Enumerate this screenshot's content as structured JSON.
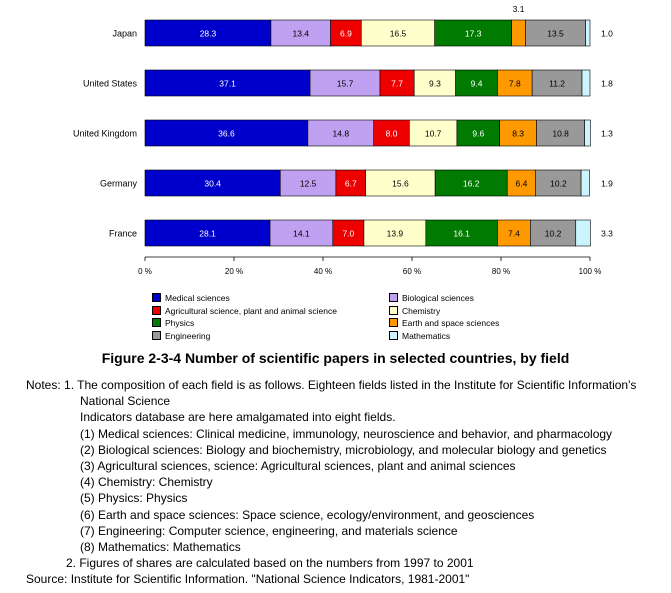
{
  "chart_data": {
    "type": "bar",
    "orientation": "horizontal",
    "stacked": true,
    "percent": true,
    "categories": [
      "Japan",
      "United States",
      "United Kingdom",
      "Germany",
      "France"
    ],
    "series": [
      {
        "name": "Medical sciences",
        "color": "#0000cc",
        "values": [
          28.3,
          37.1,
          36.6,
          30.4,
          28.1
        ],
        "labels": [
          "28.3",
          "37.1",
          "36.6",
          "30.4",
          "28.1"
        ]
      },
      {
        "name": "Biological sciences",
        "color": "#c0a0f0",
        "values": [
          13.4,
          15.7,
          14.8,
          12.5,
          14.1
        ],
        "labels": [
          "13.4",
          "15.7",
          "14.8",
          "12.5",
          "14.1"
        ]
      },
      {
        "name": "Agricultural science, plant and animal science",
        "color": "#ee0000",
        "values": [
          6.9,
          7.7,
          8.0,
          6.7,
          7.0
        ],
        "labels": [
          "6.9",
          "7.7",
          "8.0",
          "6.7",
          "7.0"
        ]
      },
      {
        "name": "Chemistry",
        "color": "#ffffcc",
        "values": [
          16.5,
          9.3,
          10.7,
          15.6,
          13.9
        ],
        "labels": [
          "16.5",
          "9.3",
          "10.7",
          "15.6",
          "13.9"
        ]
      },
      {
        "name": "Physics",
        "color": "#007a00",
        "values": [
          17.3,
          9.4,
          9.6,
          16.2,
          16.1
        ],
        "labels": [
          "17.3",
          "9.4",
          "9.6",
          "16.2",
          "16.1"
        ]
      },
      {
        "name": "Earth and space sciences",
        "color": "#ff9900",
        "values": [
          3.1,
          7.8,
          8.3,
          6.4,
          7.4
        ],
        "labels": [
          "3.1",
          "7.8",
          "8.3",
          "6.4",
          "7.4"
        ]
      },
      {
        "name": "Engineering",
        "color": "#999999",
        "values": [
          13.5,
          11.2,
          10.8,
          10.2,
          10.2
        ],
        "labels": [
          "13.5",
          "11.2",
          "10.8",
          "10.2",
          "10.2"
        ]
      },
      {
        "name": "Mathematics",
        "color": "#ccf4ff",
        "values": [
          1.0,
          1.8,
          1.3,
          1.9,
          3.3
        ],
        "labels": [
          "1.0",
          "1.8",
          "1.3",
          "1.9",
          "3.3"
        ]
      }
    ],
    "xlim": [
      0,
      100
    ],
    "x_ticks": [
      "0 %",
      "20 %",
      "40 %",
      "60 %",
      "80 %",
      "100 %"
    ],
    "grid": false,
    "legend_position": "bottom"
  },
  "figure": {
    "title": "Figure 2-3-4 Number of scientific papers in selected countries, by field"
  },
  "notes": {
    "lines": [
      "Notes: 1. The composition of each field is as follows. Eighteen fields listed in the Institute for Scientific Information's",
      "National Science",
      "Indicators database are here amalgamated into eight fields.",
      "(1) Medical sciences: Clinical medicine, immunology, neuroscience and behavior, and pharmacology",
      "(2) Biological sciences: Biology and biochemistry, microbiology, and molecular biology and genetics",
      "(3) Agricultural sciences, science: Agricultural sciences, plant and animal sciences",
      "(4) Chemistry: Chemistry",
      "(5) Physics: Physics",
      "(6) Earth and space sciences: Space science, ecology/environment, and geosciences",
      "(7) Engineering: Computer science, engineering, and materials science",
      "(8) Mathematics: Mathematics",
      "2. Figures of shares are calculated based on the numbers from 1997 to 2001"
    ],
    "source": "Source:  Institute for Scientific Information. \"National Science Indicators, 1981-2001\""
  }
}
